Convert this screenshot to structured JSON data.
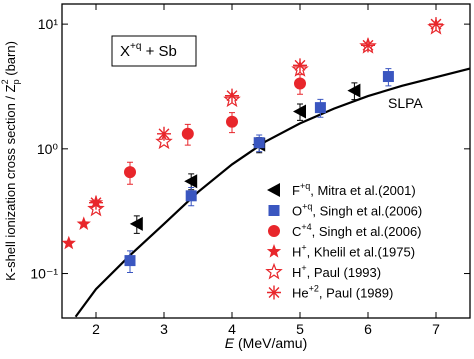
{
  "chart_data": {
    "type": "scatter",
    "xlabel": "E",
    "xlabel_unit": " (MeV/amu)",
    "ylabel": "K-shell ionization cross section / Z",
    "ylabel_sub": "p",
    "ylabel_sup": "2",
    "ylabel_unit": " (barn)",
    "xlim": [
      1.5,
      7.5
    ],
    "xticks": [
      2,
      3,
      4,
      5,
      6,
      7
    ],
    "ylim": [
      0.044,
      14.5
    ],
    "log_y": true,
    "yticks": [
      {
        "value": 0.1,
        "label": "10⁻¹"
      },
      {
        "value": 1,
        "label": "10⁰"
      },
      {
        "value": 10,
        "label": "10¹"
      }
    ],
    "annotation": {
      "base": "X",
      "sup": "+q",
      "rest": " + Sb"
    },
    "legend": "lower right",
    "series": [
      {
        "name": "F",
        "name_sup": "+q",
        "name_suffix": ", Mitra et al.(2001)",
        "marker": "triangle-left",
        "color": "#000000",
        "x": [
          2.6,
          3.4,
          4.4,
          5.0,
          5.8
        ],
        "values": [
          0.25,
          0.55,
          1.08,
          1.99,
          2.93
        ],
        "errors": [
          0.04,
          0.08,
          0.15,
          0.3,
          0.45
        ]
      },
      {
        "name": "O",
        "name_sup": "+q",
        "name_suffix": ", Singh et al.(2006)",
        "marker": "square",
        "color": "#3a56c0",
        "x": [
          2.5,
          3.4,
          4.4,
          5.3,
          6.3
        ],
        "values": [
          0.127,
          0.42,
          1.12,
          2.14,
          3.8
        ],
        "errors": [
          0.025,
          0.07,
          0.17,
          0.35,
          0.6
        ]
      },
      {
        "name": "C",
        "name_sup": "+4",
        "name_suffix": ", Singh et al.(2006)",
        "marker": "circle",
        "color": "#e8262b",
        "x": [
          2.5,
          3.35,
          4.0,
          5.0
        ],
        "values": [
          0.65,
          1.32,
          1.65,
          3.34
        ],
        "errors": [
          0.13,
          0.25,
          0.3,
          0.6
        ]
      },
      {
        "name": "H",
        "name_sup": "+",
        "name_suffix": ",  Khelil et al.(1975)",
        "marker": "star",
        "color": "#e8262b",
        "x": [
          1.6,
          1.82,
          2.0
        ],
        "values": [
          0.175,
          0.25,
          0.37
        ]
      },
      {
        "name": "H",
        "name_sup": "+",
        "name_suffix": ", Paul (1993)",
        "marker": "star-open",
        "color": "#e8262b",
        "x": [
          2.0,
          3.0,
          4.0,
          5.0,
          6.0,
          7.0
        ],
        "values": [
          0.33,
          1.14,
          2.48,
          4.34,
          6.65,
          9.46
        ]
      },
      {
        "name": "He",
        "name_sup": "+2",
        "name_suffix": ", Paul (1989)",
        "marker": "asterisk",
        "color": "#e8262b",
        "x": [
          2.0,
          3.0,
          4.0,
          5.0,
          6.0,
          7.0
        ],
        "values": [
          0.37,
          1.32,
          2.67,
          4.67,
          6.76,
          10
        ]
      }
    ],
    "curve": {
      "name": "SLPA",
      "type": "line",
      "color": "#000000",
      "x": [
        1.7,
        2.0,
        2.5,
        3.0,
        3.5,
        4.0,
        4.5,
        5.0,
        5.5,
        6.0,
        6.5,
        7.0,
        7.5
      ],
      "values": [
        0.045,
        0.075,
        0.14,
        0.25,
        0.45,
        0.75,
        1.15,
        1.6,
        2.1,
        2.65,
        3.2,
        3.75,
        4.4
      ]
    }
  }
}
